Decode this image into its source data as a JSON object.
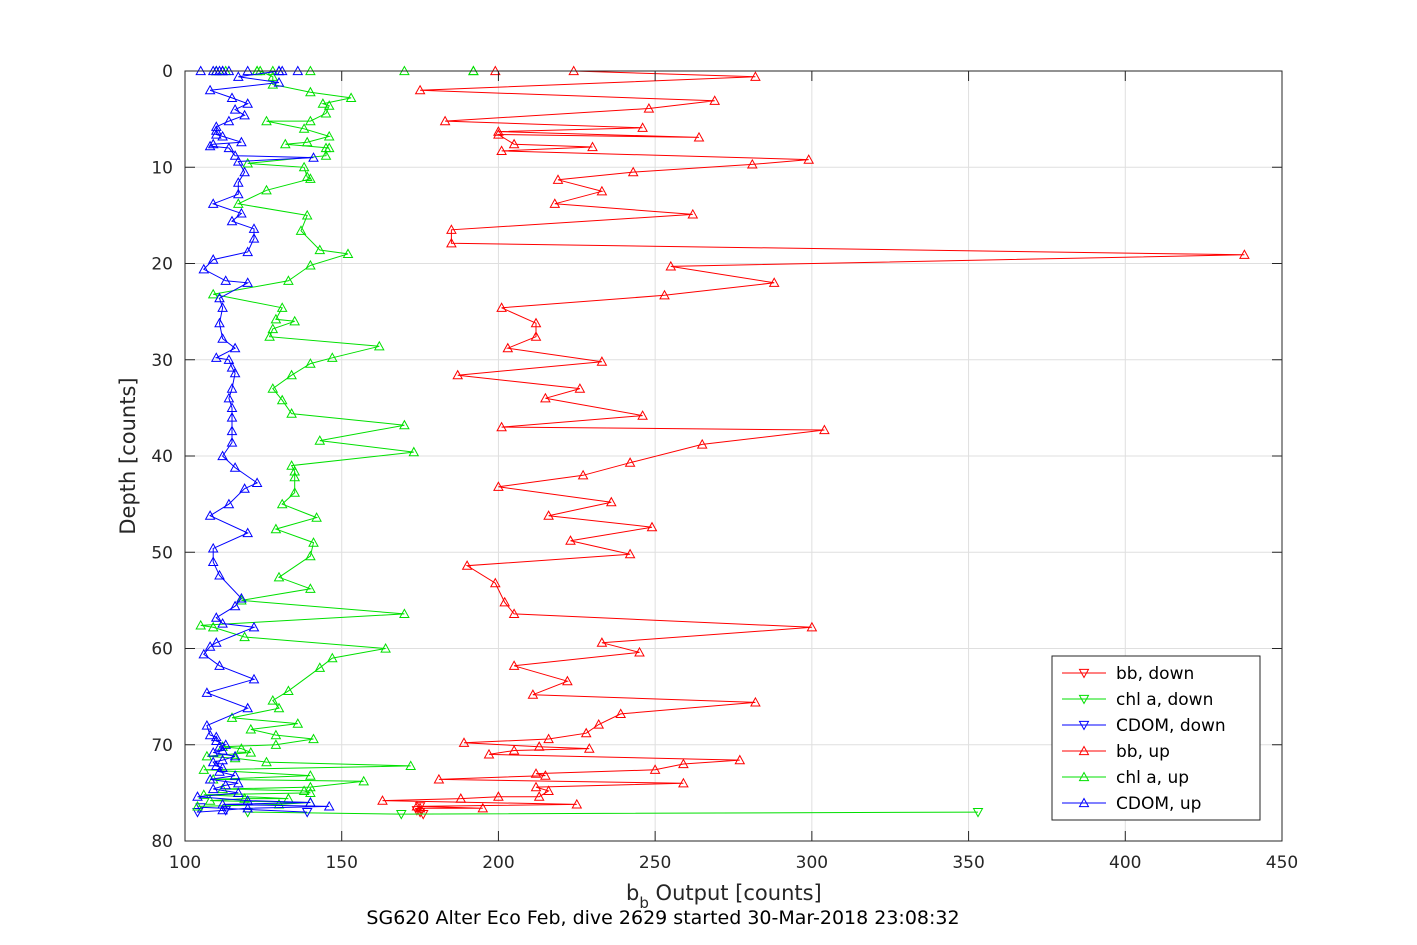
{
  "chart_data": {
    "type": "line",
    "title": "SG620 Alter Eco Feb, dive 2629 started 30-Mar-2018 23:08:32",
    "xlabel_main": "b",
    "xlabel_sub": "b",
    "xlabel_rest": " Output [counts]",
    "ylabel": "Depth [counts]",
    "xlim": [
      100,
      450
    ],
    "ylim": [
      0,
      80
    ],
    "y_reversed": true,
    "grid": true,
    "legend_position": "lower-right",
    "x_ticks": [
      "100",
      "150",
      "200",
      "250",
      "300",
      "350",
      "400",
      "450"
    ],
    "y_ticks": [
      "0",
      "10",
      "20",
      "30",
      "40",
      "50",
      "60",
      "70",
      "80"
    ],
    "series": [
      {
        "name": "bb, down",
        "color": "#ff0000",
        "marker": "triangle-down",
        "x": [
          176,
          175,
          174,
          175
        ],
        "y": [
          77.2,
          77.0,
          76.8,
          76.4
        ]
      },
      {
        "name": "chl a, down",
        "color": "#00e000",
        "marker": "triangle-down",
        "x": [
          353,
          169,
          120
        ],
        "y": [
          77.0,
          77.2,
          77.0
        ]
      },
      {
        "name": "CDOM, down",
        "color": "#0000ff",
        "marker": "triangle-down",
        "x": [
          139,
          105,
          104,
          113
        ],
        "y": [
          77.0,
          76.5,
          77.0,
          76.8
        ]
      },
      {
        "name": "bb, up",
        "color": "#ff0000",
        "marker": "triangle-up",
        "x": [
          175,
          195,
          174,
          225,
          163,
          188,
          200,
          213,
          216,
          212,
          259,
          181,
          215,
          212,
          250,
          259,
          277,
          197,
          205,
          229,
          213,
          189,
          216,
          228,
          232,
          239,
          282,
          211,
          222,
          205,
          245,
          233,
          300,
          205,
          202,
          199,
          190,
          242,
          223,
          249,
          216,
          236,
          200,
          227,
          242,
          265,
          304,
          201,
          246,
          215,
          226,
          187,
          233,
          203,
          212,
          212,
          201,
          253,
          288,
          255,
          438,
          185,
          185,
          262,
          218,
          233,
          219,
          243,
          281,
          299,
          201,
          230,
          205,
          200,
          264,
          200,
          246,
          183,
          248,
          269,
          175,
          282,
          224,
          199
        ],
        "y": [
          76.6,
          76.6,
          76.4,
          76.2,
          75.8,
          75.6,
          75.4,
          75.4,
          74.8,
          74.4,
          74.0,
          73.6,
          73.2,
          73.0,
          72.6,
          72.0,
          71.6,
          71.0,
          70.6,
          70.4,
          70.2,
          69.8,
          69.4,
          68.8,
          67.9,
          66.8,
          65.6,
          64.8,
          63.4,
          61.8,
          60.4,
          59.4,
          57.8,
          56.4,
          55.2,
          53.2,
          51.4,
          50.2,
          48.8,
          47.4,
          46.2,
          44.8,
          43.2,
          42.0,
          40.7,
          38.8,
          37.3,
          37.0,
          35.8,
          34.0,
          33.0,
          31.6,
          30.2,
          28.8,
          27.6,
          26.2,
          24.6,
          23.3,
          22.0,
          20.3,
          19.1,
          17.9,
          16.5,
          14.9,
          13.8,
          12.5,
          11.3,
          10.5,
          9.7,
          9.2,
          8.3,
          7.9,
          7.6,
          6.6,
          6.9,
          6.3,
          5.9,
          5.2,
          3.9,
          3.1,
          2.0,
          0.6,
          0.0,
          0.0
        ]
      },
      {
        "name": "chl a, up",
        "color": "#00e000",
        "marker": "triangle-up",
        "x": [
          104,
          130,
          140,
          108,
          119,
          133,
          106,
          140,
          138,
          112,
          140,
          157,
          109,
          140,
          106,
          172,
          126,
          116,
          107,
          121,
          118,
          112,
          129,
          141,
          129,
          121,
          136,
          115,
          130,
          128,
          133,
          143,
          147,
          164,
          119,
          109,
          105,
          170,
          118,
          140,
          130,
          140,
          141,
          129,
          142,
          131,
          135,
          135,
          135,
          134,
          173,
          143,
          170,
          134,
          131,
          128,
          134,
          140,
          147,
          162,
          127,
          128,
          135,
          129,
          131,
          109,
          133,
          140,
          152,
          143,
          137,
          139,
          117,
          126,
          140,
          139,
          138,
          120,
          145,
          145,
          146,
          132,
          139,
          146,
          138,
          126,
          140,
          145,
          146,
          144,
          153,
          140,
          128,
          128,
          124,
          128,
          170,
          110,
          192,
          192,
          140,
          113,
          123,
          123,
          110
        ],
        "y": [
          76.4,
          76.2,
          76.0,
          75.8,
          75.6,
          75.6,
          75.2,
          75.0,
          74.8,
          74.6,
          74.4,
          73.8,
          73.6,
          73.2,
          72.6,
          72.2,
          71.8,
          71.4,
          71.2,
          70.8,
          70.4,
          70.2,
          70.0,
          69.4,
          69.0,
          68.4,
          67.8,
          67.2,
          66.2,
          65.4,
          64.4,
          62.0,
          61.0,
          60.0,
          58.8,
          57.8,
          57.6,
          56.4,
          55.0,
          53.8,
          52.6,
          50.4,
          49.0,
          47.6,
          46.4,
          45.0,
          43.8,
          42.2,
          41.6,
          41.0,
          39.6,
          38.4,
          36.8,
          35.6,
          34.2,
          33.0,
          31.6,
          30.4,
          29.8,
          28.6,
          27.6,
          26.8,
          26.0,
          25.8,
          24.6,
          23.2,
          21.8,
          20.2,
          19.0,
          18.6,
          16.6,
          15.0,
          13.8,
          12.4,
          11.2,
          11.0,
          10.0,
          9.6,
          8.8,
          8.0,
          8.0,
          7.6,
          7.4,
          6.8,
          6.0,
          5.2,
          5.2,
          4.4,
          3.6,
          3.4,
          2.8,
          2.2,
          1.4,
          0.6,
          0.0,
          0.0,
          0.0,
          0.0,
          0.0,
          0.0,
          0.0,
          0.0,
          0.0,
          0.0,
          0.0
        ],
        "note_xy": ""
      },
      {
        "name": "CDOM, up",
        "color": "#0000ff",
        "marker": "triangle-up",
        "x": [
          112,
          120,
          146,
          112,
          140,
          120,
          104,
          117,
          109,
          113,
          117,
          108,
          116,
          111,
          112,
          110,
          109,
          112,
          116,
          109,
          112,
          111,
          113,
          110,
          110,
          108,
          107,
          120,
          107,
          122,
          111,
          106,
          108,
          110,
          122,
          112,
          110,
          116,
          118,
          111,
          109,
          109,
          120,
          108,
          114,
          119,
          123,
          116,
          112,
          115,
          115,
          115,
          115,
          114,
          115,
          116,
          115,
          114,
          110,
          116,
          112,
          111,
          112,
          111,
          120,
          113,
          106,
          109,
          120,
          122,
          122,
          115,
          118,
          109,
          117,
          117,
          119,
          117,
          141,
          116,
          114,
          108,
          109,
          118,
          112,
          110,
          110,
          110,
          114,
          119,
          116,
          120,
          115,
          108,
          130,
          117,
          130,
          105,
          112,
          130,
          120,
          131,
          136,
          114,
          109,
          110,
          111,
          112
        ],
        "y": [
          76.8,
          76.6,
          76.4,
          76.2,
          76.0,
          75.8,
          75.4,
          75.0,
          74.6,
          74.2,
          74.0,
          73.6,
          73.2,
          72.8,
          72.4,
          72.2,
          71.8,
          71.6,
          71.2,
          70.8,
          70.6,
          70.2,
          70.0,
          69.6,
          69.2,
          69.0,
          68.0,
          66.2,
          64.6,
          63.2,
          61.8,
          60.6,
          59.8,
          59.4,
          57.8,
          57.4,
          56.8,
          55.6,
          54.8,
          52.4,
          51.0,
          49.6,
          48.0,
          46.2,
          45.0,
          43.4,
          42.8,
          41.2,
          40.0,
          38.6,
          37.4,
          36.0,
          35.0,
          34.0,
          33.0,
          31.4,
          30.8,
          30.0,
          29.8,
          28.8,
          27.8,
          26.2,
          24.6,
          23.6,
          22.0,
          21.8,
          20.6,
          19.6,
          18.8,
          17.4,
          16.4,
          15.6,
          14.8,
          13.8,
          12.8,
          11.6,
          10.5,
          9.4,
          9.0,
          8.8,
          8.0,
          7.8,
          7.6,
          7.4,
          6.8,
          6.6,
          6.2,
          5.8,
          5.2,
          4.6,
          4.0,
          3.4,
          2.8,
          2.0,
          1.2,
          0.6,
          0.0,
          0.0,
          0.0,
          0.0,
          0.0,
          0.0,
          0.0,
          0.0,
          0.0,
          0.0,
          0.0,
          0.0
        ]
      }
    ]
  }
}
